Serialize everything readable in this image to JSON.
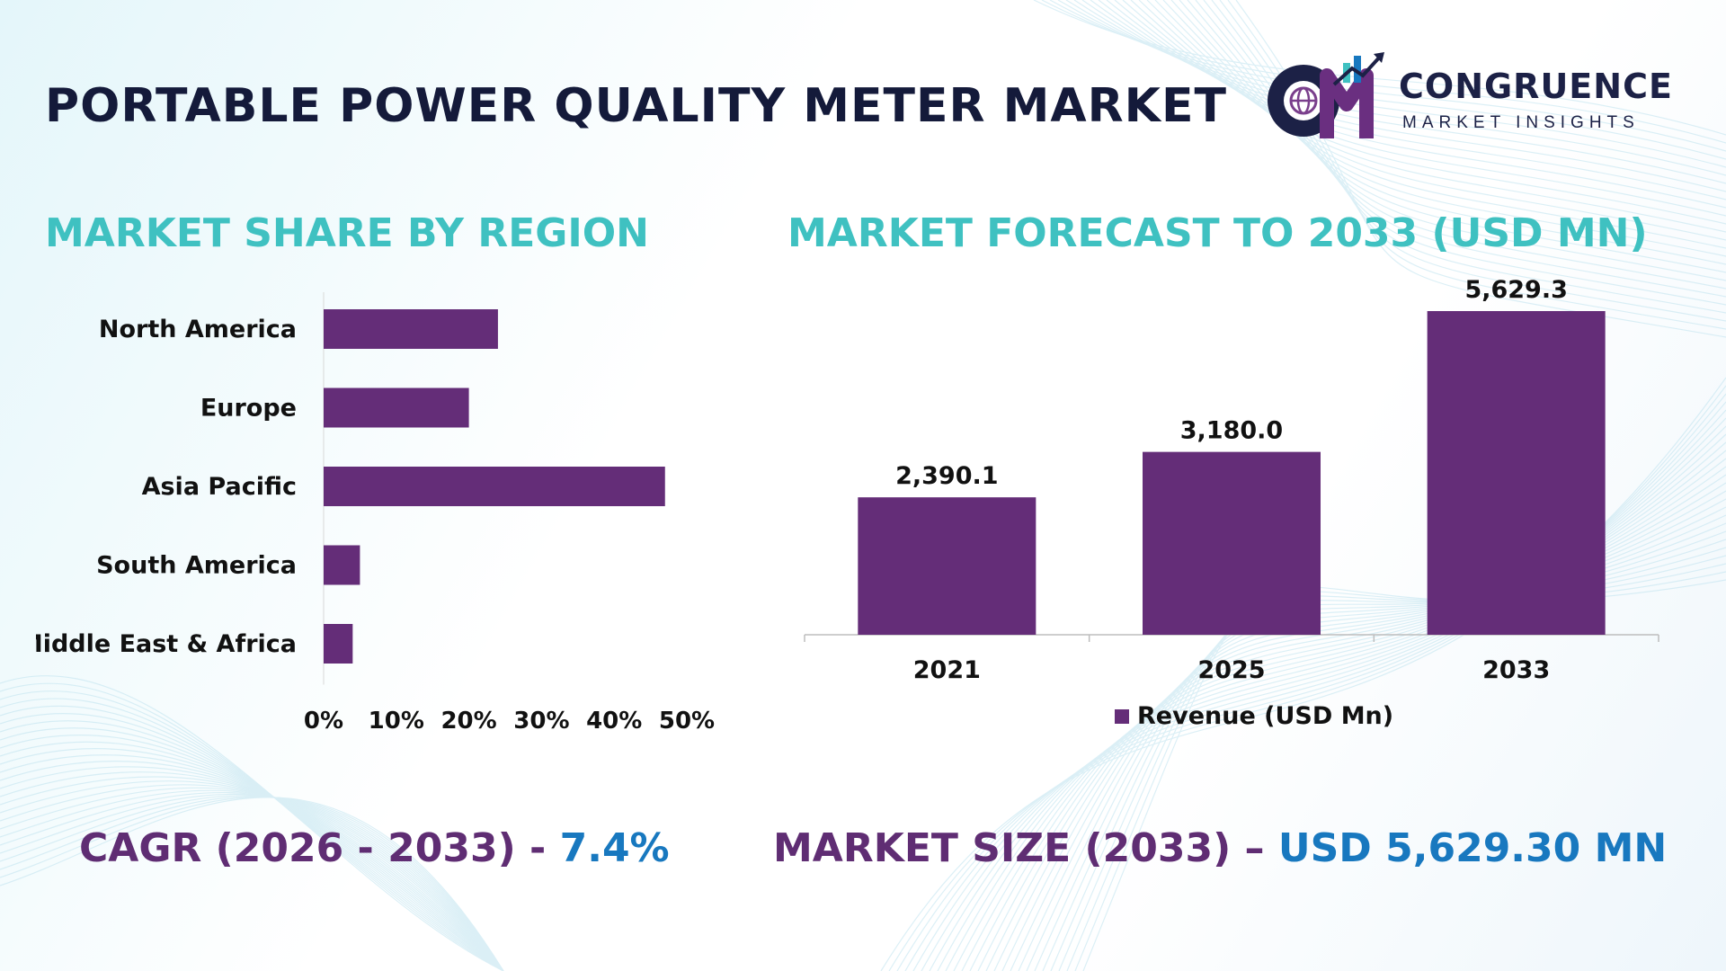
{
  "header": {
    "title": "PORTABLE POWER QUALITY METER MARKET",
    "logo": {
      "initials": "CM",
      "name": "CONGRUENCE",
      "tagline": "MARKET INSIGHTS",
      "icon": "globe-bar-chart-icon"
    }
  },
  "sections": {
    "share_title": "MARKET SHARE BY REGION",
    "forecast_title": "MARKET FORECAST TO 2033 (USD MN)"
  },
  "footer": {
    "cagr_label": "CAGR (2026 - 2033) -",
    "cagr_value": "7.4%",
    "size_label": "MARKET SIZE (2033) –",
    "size_value": "USD 5,629.30 MN"
  },
  "colors": {
    "bar": "#642d78",
    "title": "#141a3a",
    "section": "#3fc1c1",
    "footer_label": "#5f2d73",
    "footer_value": "#1878bf"
  },
  "chart_data": [
    {
      "type": "bar",
      "orientation": "horizontal",
      "categories": [
        "North America",
        "Europe",
        "Asia Pacific",
        "South America",
        "Middle East & Africa"
      ],
      "values": [
        24,
        20,
        47,
        5,
        4
      ],
      "xlim": [
        0,
        50
      ],
      "ticks": [
        0,
        10,
        20,
        30,
        40,
        50
      ],
      "tick_labels": [
        "0%",
        "10%",
        "20%",
        "30%",
        "40%",
        "50%"
      ],
      "grid": false,
      "legend": "none"
    },
    {
      "type": "bar",
      "categories": [
        "2021",
        "2025",
        "2033"
      ],
      "series": [
        {
          "name": "Revenue (USD Mn)",
          "values": [
            2390.1,
            3180.0,
            5629.3
          ],
          "data_labels": [
            "2,390.1",
            "3,180.0",
            "5,629.3"
          ]
        }
      ],
      "ylim": [
        0,
        5629.3
      ],
      "grid": false,
      "legend": "bottom"
    }
  ]
}
